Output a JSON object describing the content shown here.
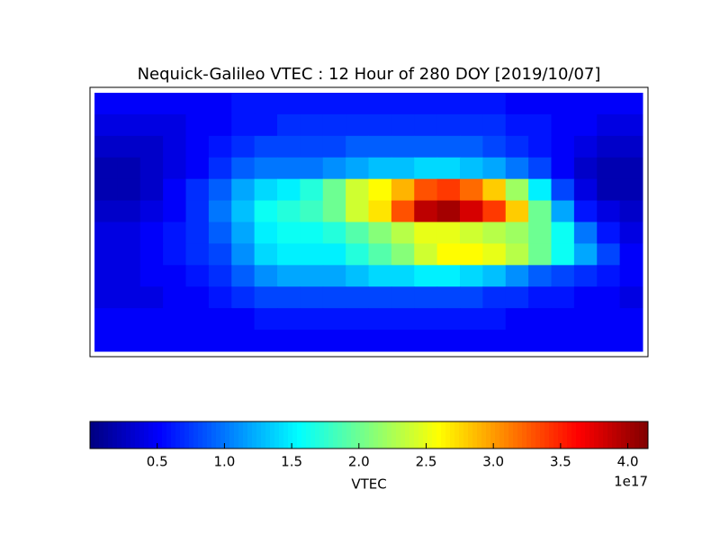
{
  "chart_data": {
    "type": "heatmap",
    "title": "Nequick-Galileo VTEC : 12 Hour of 280 DOY [2019/10/07]",
    "colormap": "jet",
    "xlim": [
      -180,
      180
    ],
    "ylim": [
      -90,
      90
    ],
    "z": [
      [
        0.5,
        0.5,
        0.5,
        0.5,
        0.5,
        0.5,
        0.6,
        0.6,
        0.6,
        0.6,
        0.6,
        0.6,
        0.6,
        0.6,
        0.6,
        0.6,
        0.6,
        0.6,
        0.5,
        0.5,
        0.5,
        0.5,
        0.5,
        0.5
      ],
      [
        0.4,
        0.4,
        0.4,
        0.4,
        0.5,
        0.5,
        0.6,
        0.6,
        0.7,
        0.7,
        0.7,
        0.7,
        0.7,
        0.7,
        0.7,
        0.7,
        0.7,
        0.7,
        0.6,
        0.6,
        0.5,
        0.5,
        0.4,
        0.4
      ],
      [
        0.3,
        0.3,
        0.3,
        0.4,
        0.5,
        0.6,
        0.7,
        0.8,
        0.8,
        0.8,
        0.8,
        0.9,
        0.9,
        0.9,
        0.9,
        0.9,
        0.9,
        0.8,
        0.7,
        0.6,
        0.5,
        0.4,
        0.3,
        0.3
      ],
      [
        0.2,
        0.2,
        0.3,
        0.4,
        0.5,
        0.7,
        0.9,
        1.0,
        1.0,
        1.0,
        1.1,
        1.2,
        1.3,
        1.3,
        1.4,
        1.4,
        1.3,
        1.2,
        1.0,
        0.8,
        0.5,
        0.3,
        0.2,
        0.2
      ],
      [
        0.2,
        0.2,
        0.3,
        0.5,
        0.7,
        0.9,
        1.2,
        1.4,
        1.5,
        1.7,
        2.0,
        2.4,
        2.6,
        2.9,
        3.3,
        3.4,
        3.2,
        2.8,
        2.2,
        1.5,
        0.8,
        0.4,
        0.2,
        0.2
      ],
      [
        0.3,
        0.3,
        0.4,
        0.5,
        0.7,
        1.0,
        1.3,
        1.6,
        1.7,
        1.8,
        2.0,
        2.4,
        2.7,
        3.3,
        3.9,
        4.0,
        3.8,
        3.4,
        2.8,
        2.0,
        1.2,
        0.6,
        0.4,
        0.3
      ],
      [
        0.4,
        0.4,
        0.5,
        0.6,
        0.7,
        0.9,
        1.2,
        1.5,
        1.6,
        1.6,
        1.7,
        1.9,
        2.1,
        2.3,
        2.5,
        2.5,
        2.4,
        2.3,
        2.2,
        2.0,
        1.6,
        1.0,
        0.6,
        0.4
      ],
      [
        0.4,
        0.4,
        0.5,
        0.6,
        0.7,
        0.8,
        1.1,
        1.4,
        1.5,
        1.5,
        1.5,
        1.7,
        1.9,
        2.1,
        2.4,
        2.6,
        2.6,
        2.5,
        2.3,
        2.0,
        1.6,
        1.2,
        0.8,
        0.5
      ],
      [
        0.4,
        0.4,
        0.5,
        0.5,
        0.6,
        0.7,
        0.9,
        1.1,
        1.2,
        1.2,
        1.2,
        1.3,
        1.4,
        1.4,
        1.5,
        1.5,
        1.4,
        1.3,
        1.1,
        0.9,
        0.8,
        0.7,
        0.6,
        0.5
      ],
      [
        0.4,
        0.4,
        0.4,
        0.5,
        0.5,
        0.6,
        0.7,
        0.8,
        0.8,
        0.8,
        0.8,
        0.8,
        0.8,
        0.8,
        0.8,
        0.8,
        0.8,
        0.7,
        0.7,
        0.6,
        0.6,
        0.5,
        0.5,
        0.4
      ],
      [
        0.5,
        0.5,
        0.5,
        0.5,
        0.5,
        0.5,
        0.5,
        0.6,
        0.6,
        0.6,
        0.6,
        0.6,
        0.6,
        0.6,
        0.6,
        0.6,
        0.6,
        0.6,
        0.5,
        0.5,
        0.5,
        0.5,
        0.5,
        0.5
      ],
      [
        0.5,
        0.5,
        0.5,
        0.5,
        0.5,
        0.5,
        0.5,
        0.5,
        0.5,
        0.5,
        0.5,
        0.5,
        0.5,
        0.5,
        0.5,
        0.5,
        0.5,
        0.5,
        0.5,
        0.5,
        0.5,
        0.5,
        0.5,
        0.5
      ]
    ],
    "colorbar": {
      "label": "VTEC",
      "offset_label": "1e17",
      "clim": [
        0.0,
        4.15
      ],
      "ticks": [
        0.5,
        {
          "value": 1,
          "label": "1.0"
        },
        1.5,
        {
          "value": 2,
          "label": "2.0"
        },
        2.5,
        {
          "value": 3,
          "label": "3.0"
        },
        3.5,
        {
          "value": 4,
          "label": "4.0"
        }
      ]
    }
  }
}
